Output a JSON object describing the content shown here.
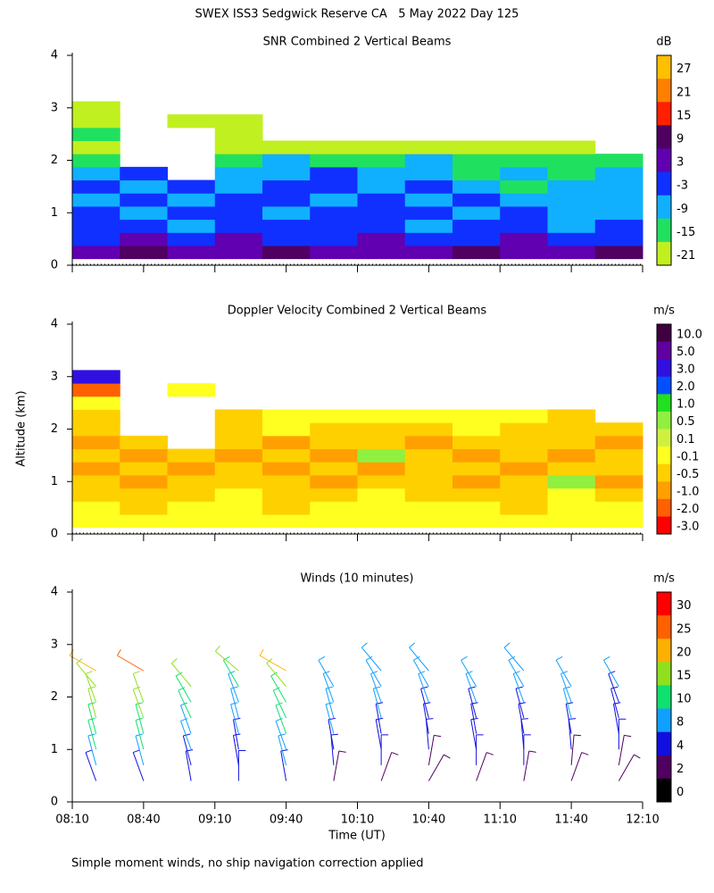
{
  "title": "SWEX ISS3 Sedgwick Reserve CA   5 May 2022 Day 125",
  "note": "Simple moment winds, no ship navigation correction applied",
  "chart_data": [
    {
      "type": "heatmap",
      "title": "SNR Combined 2 Vertical Beams",
      "cbar_label": "dB",
      "x": [
        "08:20",
        "08:40",
        "09:00",
        "09:20",
        "09:40",
        "10:00",
        "10:20",
        "10:40",
        "11:00",
        "11:20",
        "11:40",
        "12:00"
      ],
      "altitudes": [
        0.25,
        0.5,
        0.75,
        1.0,
        1.25,
        1.5,
        1.75,
        2.0,
        2.25,
        2.5,
        2.75,
        3.0
      ],
      "values": [
        [
          3,
          6,
          3,
          3,
          6,
          3,
          3,
          3,
          6,
          3,
          3,
          6
        ],
        [
          -3,
          3,
          -3,
          3,
          -3,
          -3,
          3,
          -3,
          -3,
          3,
          -3,
          -3
        ],
        [
          -3,
          -3,
          -9,
          -3,
          -3,
          -3,
          -3,
          -9,
          -3,
          -3,
          -9,
          -3
        ],
        [
          -3,
          -9,
          -3,
          -3,
          -9,
          -3,
          -3,
          -3,
          -9,
          -3,
          -9,
          -9
        ],
        [
          -9,
          -3,
          -9,
          -3,
          -3,
          -9,
          -3,
          -9,
          -3,
          -9,
          -9,
          -9
        ],
        [
          -3,
          -9,
          -3,
          -9,
          -3,
          -3,
          -9,
          -3,
          -9,
          -15,
          -9,
          -9
        ],
        [
          -9,
          -3,
          null,
          -9,
          -9,
          -3,
          -9,
          -9,
          -15,
          -9,
          -15,
          -9
        ],
        [
          -15,
          null,
          null,
          -15,
          -9,
          -15,
          -15,
          -9,
          -15,
          -15,
          -15,
          -15
        ],
        [
          -21,
          null,
          null,
          -21,
          -21,
          -21,
          -21,
          -21,
          -21,
          -21,
          -21,
          null
        ],
        [
          -15,
          null,
          null,
          -21,
          null,
          null,
          null,
          null,
          null,
          null,
          null,
          null
        ],
        [
          -21,
          null,
          -21,
          -21,
          null,
          null,
          null,
          null,
          null,
          null,
          null,
          null
        ],
        [
          -21,
          null,
          null,
          null,
          null,
          null,
          null,
          null,
          null,
          null,
          null,
          null
        ]
      ],
      "cbar_ticks": [
        27,
        21,
        15,
        9,
        3,
        -3,
        -9,
        -15,
        -21
      ],
      "colors": [
        "#ffc000",
        "#ff8000",
        "#ff2000",
        "#500060",
        "#6000b0",
        "#1030ff",
        "#10b0ff",
        "#20e060",
        "#c0f020"
      ],
      "xlim": [
        "08:10",
        "12:10"
      ],
      "xticks": [
        "08:10",
        "08:40",
        "09:10",
        "09:40",
        "10:10",
        "10:40",
        "11:10",
        "11:40",
        "12:10"
      ],
      "ylim": [
        0,
        4
      ],
      "yticks": [
        0,
        1,
        2,
        3,
        4
      ]
    },
    {
      "type": "heatmap",
      "title": "Doppler Velocity Combined 2 Vertical Beams",
      "cbar_label": "m/s",
      "ylabel": "Altitude (km)",
      "x": [
        "08:20",
        "08:40",
        "09:00",
        "09:20",
        "09:40",
        "10:00",
        "10:20",
        "10:40",
        "11:00",
        "11:20",
        "11:40",
        "12:00"
      ],
      "altitudes": [
        0.25,
        0.5,
        0.75,
        1.0,
        1.25,
        1.5,
        1.75,
        2.0,
        2.25,
        2.5,
        2.75,
        3.0
      ],
      "values": [
        [
          -0.1,
          -0.1,
          -0.1,
          -0.1,
          -0.1,
          -0.1,
          -0.1,
          -0.1,
          -0.1,
          -0.1,
          -0.1,
          -0.1
        ],
        [
          -0.1,
          -0.5,
          -0.1,
          -0.1,
          -0.5,
          -0.1,
          -0.1,
          -0.1,
          -0.1,
          -0.5,
          -0.1,
          -0.1
        ],
        [
          -0.5,
          -0.5,
          -0.5,
          -0.1,
          -0.5,
          -0.5,
          -0.1,
          -0.5,
          -0.5,
          -0.5,
          -0.1,
          -0.5
        ],
        [
          -0.5,
          -1.0,
          -0.5,
          -0.5,
          -0.5,
          -1.0,
          -0.5,
          -0.5,
          -1.0,
          -0.5,
          0.5,
          -1.0
        ],
        [
          -1.0,
          -0.5,
          -1.0,
          -0.5,
          -1.0,
          -0.5,
          -1.0,
          -0.5,
          -0.5,
          -1.0,
          -0.5,
          -0.5
        ],
        [
          -0.5,
          -1.0,
          -0.5,
          -1.0,
          -0.5,
          -1.0,
          0.5,
          -0.5,
          -1.0,
          -0.5,
          -1.0,
          -0.5
        ],
        [
          -1.0,
          -0.5,
          null,
          -0.5,
          -1.0,
          -0.5,
          -0.5,
          -1.0,
          -0.5,
          -0.5,
          -0.5,
          -1.0
        ],
        [
          -0.5,
          null,
          null,
          -0.5,
          -0.1,
          -0.5,
          -0.5,
          -0.5,
          -0.1,
          -0.5,
          -0.5,
          -0.5
        ],
        [
          -0.5,
          null,
          null,
          -0.5,
          -0.1,
          -0.1,
          -0.1,
          -0.1,
          -0.1,
          -0.1,
          -0.5,
          null
        ],
        [
          -0.1,
          null,
          null,
          null,
          null,
          null,
          null,
          null,
          null,
          null,
          null,
          null
        ],
        [
          -2.0,
          null,
          -0.1,
          null,
          null,
          null,
          null,
          null,
          null,
          null,
          null,
          null
        ],
        [
          3.0,
          null,
          null,
          null,
          null,
          null,
          null,
          null,
          null,
          null,
          null,
          null
        ]
      ],
      "cbar_ticks": [
        {
          "value": 10,
          "label": "10.0"
        },
        {
          "value": 5,
          "label": "5.0"
        },
        {
          "value": 3,
          "label": "3.0"
        },
        {
          "value": 2,
          "label": "2.0"
        },
        {
          "value": 1,
          "label": "1.0"
        },
        0.5,
        0.1,
        -0.1,
        -0.5,
        {
          "value": -1,
          "label": "-1.0"
        },
        {
          "value": -2,
          "label": "-2.0"
        },
        {
          "value": -3,
          "label": "-3.0"
        }
      ],
      "colors": [
        "#400040",
        "#6000a0",
        "#3010e0",
        "#0050ff",
        "#20e020",
        "#90f040",
        "#d0f040",
        "#ffff20",
        "#ffd000",
        "#ffa000",
        "#ff6000",
        "#ff0000"
      ],
      "xlim": [
        "08:10",
        "12:10"
      ],
      "xticks": [
        "08:10",
        "08:40",
        "09:10",
        "09:40",
        "10:10",
        "10:40",
        "11:10",
        "11:40",
        "12:10"
      ],
      "ylim": [
        0,
        4
      ],
      "yticks": [
        0,
        1,
        2,
        3,
        4
      ]
    },
    {
      "type": "barbs",
      "title": "Winds (10 minutes)",
      "cbar_label": "m/s",
      "xlabel": "Time (UT)",
      "altitudes": [
        0.4,
        0.7,
        1.0,
        1.3,
        1.6,
        1.9,
        2.2,
        2.5
      ],
      "series": [
        {
          "time": "08:20",
          "speeds": [
            4,
            6,
            10,
            12,
            15,
            15,
            16,
            18
          ],
          "directions": [
            340,
            345,
            345,
            345,
            345,
            340,
            320,
            300
          ]
        },
        {
          "time": "08:40",
          "speeds": [
            4,
            6,
            10,
            12,
            13,
            15,
            null,
            25
          ],
          "directions": [
            340,
            345,
            345,
            345,
            340,
            340,
            null,
            300
          ]
        },
        {
          "time": "09:00",
          "speeds": [
            4,
            4,
            6,
            8,
            10,
            12,
            14,
            null
          ],
          "directions": [
            350,
            345,
            340,
            340,
            335,
            330,
            320,
            null
          ]
        },
        {
          "time": "09:20",
          "speeds": [
            4,
            4,
            4,
            6,
            6,
            8,
            10,
            15
          ],
          "directions": [
            0,
            350,
            350,
            345,
            345,
            340,
            330,
            310
          ]
        },
        {
          "time": "09:40",
          "speeds": [
            4,
            6,
            8,
            10,
            12,
            12,
            14,
            18
          ],
          "directions": [
            350,
            345,
            340,
            340,
            335,
            330,
            320,
            300
          ]
        },
        {
          "time": "10:00",
          "speeds": [
            2,
            4,
            4,
            6,
            6,
            6,
            8,
            null
          ],
          "directions": [
            10,
            355,
            350,
            345,
            345,
            340,
            330,
            null
          ]
        },
        {
          "time": "10:20",
          "speeds": [
            2,
            4,
            4,
            4,
            6,
            6,
            6,
            8
          ],
          "directions": [
            20,
            0,
            350,
            350,
            345,
            340,
            330,
            320
          ]
        },
        {
          "time": "10:40",
          "speeds": [
            2,
            2,
            4,
            4,
            4,
            6,
            6,
            8
          ],
          "directions": [
            30,
            10,
            355,
            350,
            345,
            340,
            330,
            320
          ]
        },
        {
          "time": "11:00",
          "speeds": [
            2,
            4,
            4,
            4,
            4,
            6,
            6,
            null
          ],
          "directions": [
            20,
            0,
            350,
            350,
            345,
            340,
            330,
            null
          ]
        },
        {
          "time": "11:20",
          "speeds": [
            2,
            4,
            4,
            4,
            4,
            6,
            6,
            8
          ],
          "directions": [
            10,
            0,
            355,
            350,
            345,
            340,
            330,
            320
          ]
        },
        {
          "time": "11:40",
          "speeds": [
            2,
            2,
            4,
            4,
            6,
            6,
            6,
            null
          ],
          "directions": [
            20,
            5,
            355,
            350,
            345,
            340,
            330,
            null
          ]
        },
        {
          "time": "12:00",
          "speeds": [
            2,
            2,
            4,
            4,
            4,
            4,
            6,
            null
          ],
          "directions": [
            30,
            10,
            0,
            350,
            345,
            340,
            330,
            null
          ]
        }
      ],
      "cbar_ticks": [
        30,
        25,
        20,
        15,
        10,
        8,
        4,
        2,
        0
      ],
      "colors": [
        "#ff0000",
        "#ff6000",
        "#ffb000",
        "#90e020",
        "#10e070",
        "#10a0ff",
        "#1010e0",
        "#500060",
        "#000000"
      ],
      "xlim": [
        "08:10",
        "12:10"
      ],
      "xticks": [
        "08:10",
        "08:40",
        "09:10",
        "09:40",
        "10:10",
        "10:40",
        "11:10",
        "11:40",
        "12:10"
      ],
      "ylim": [
        0,
        4
      ],
      "yticks": [
        0,
        1,
        2,
        3,
        4
      ]
    }
  ]
}
